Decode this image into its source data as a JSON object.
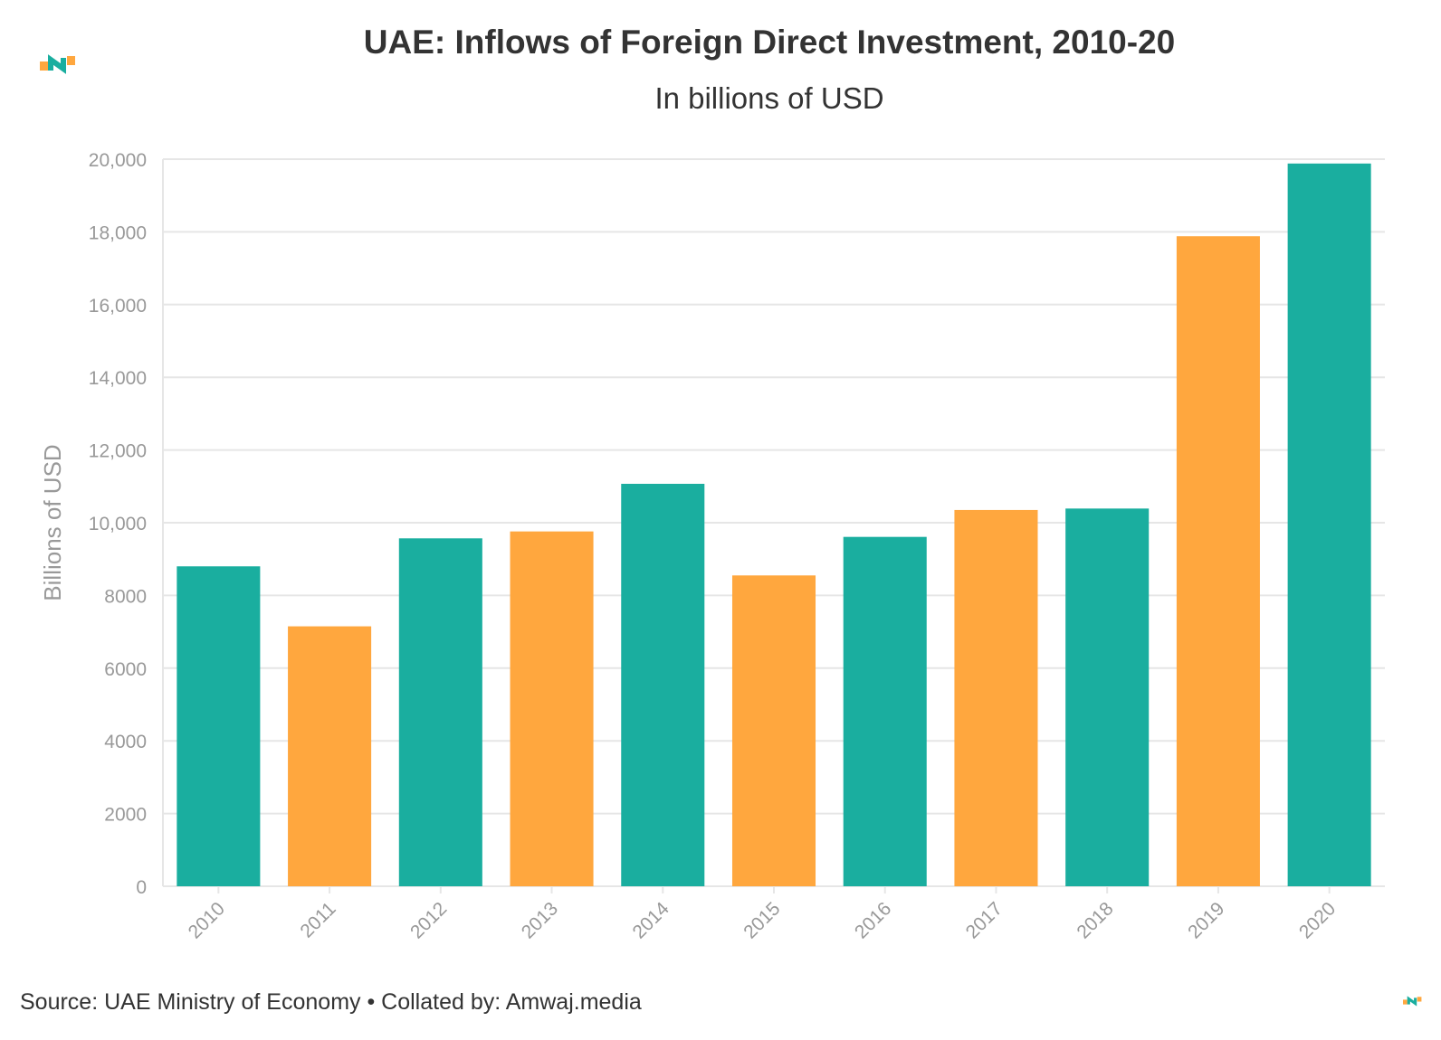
{
  "chart_data": {
    "type": "bar",
    "title": "UAE: Inflows of Foreign Direct Investment, 2010-20",
    "subtitle": "In billions of USD",
    "xlabel": "",
    "ylabel": "Billions of USD",
    "categories": [
      "2010",
      "2011",
      "2012",
      "2013",
      "2014",
      "2015",
      "2016",
      "2017",
      "2018",
      "2019",
      "2020"
    ],
    "values": [
      8800,
      7150,
      9570,
      9760,
      11070,
      8550,
      9610,
      10350,
      10390,
      17880,
      19880
    ],
    "ylim": [
      0,
      20000
    ],
    "yticks": [
      0,
      2000,
      4000,
      6000,
      8000,
      10000,
      12000,
      14000,
      16000,
      18000,
      20000
    ],
    "ytick_labels": [
      "0",
      "2000",
      "4000",
      "6000",
      "8000",
      "10,000",
      "12,000",
      "14,000",
      "16,000",
      "18,000",
      "20,000"
    ],
    "bar_colors": [
      "#1aae9f",
      "#ffa73e",
      "#1aae9f",
      "#ffa73e",
      "#1aae9f",
      "#ffa73e",
      "#1aae9f",
      "#ffa73e",
      "#1aae9f",
      "#ffa73e",
      "#1aae9f"
    ],
    "grid": true,
    "legend": "none"
  },
  "source": "Source: UAE Ministry of Economy • Collated by: Amwaj.media",
  "colors": {
    "teal": "#1aae9f",
    "orange": "#ffa73e",
    "grid": "#e6e6e6",
    "tick_text": "#999999",
    "text": "#333333"
  }
}
